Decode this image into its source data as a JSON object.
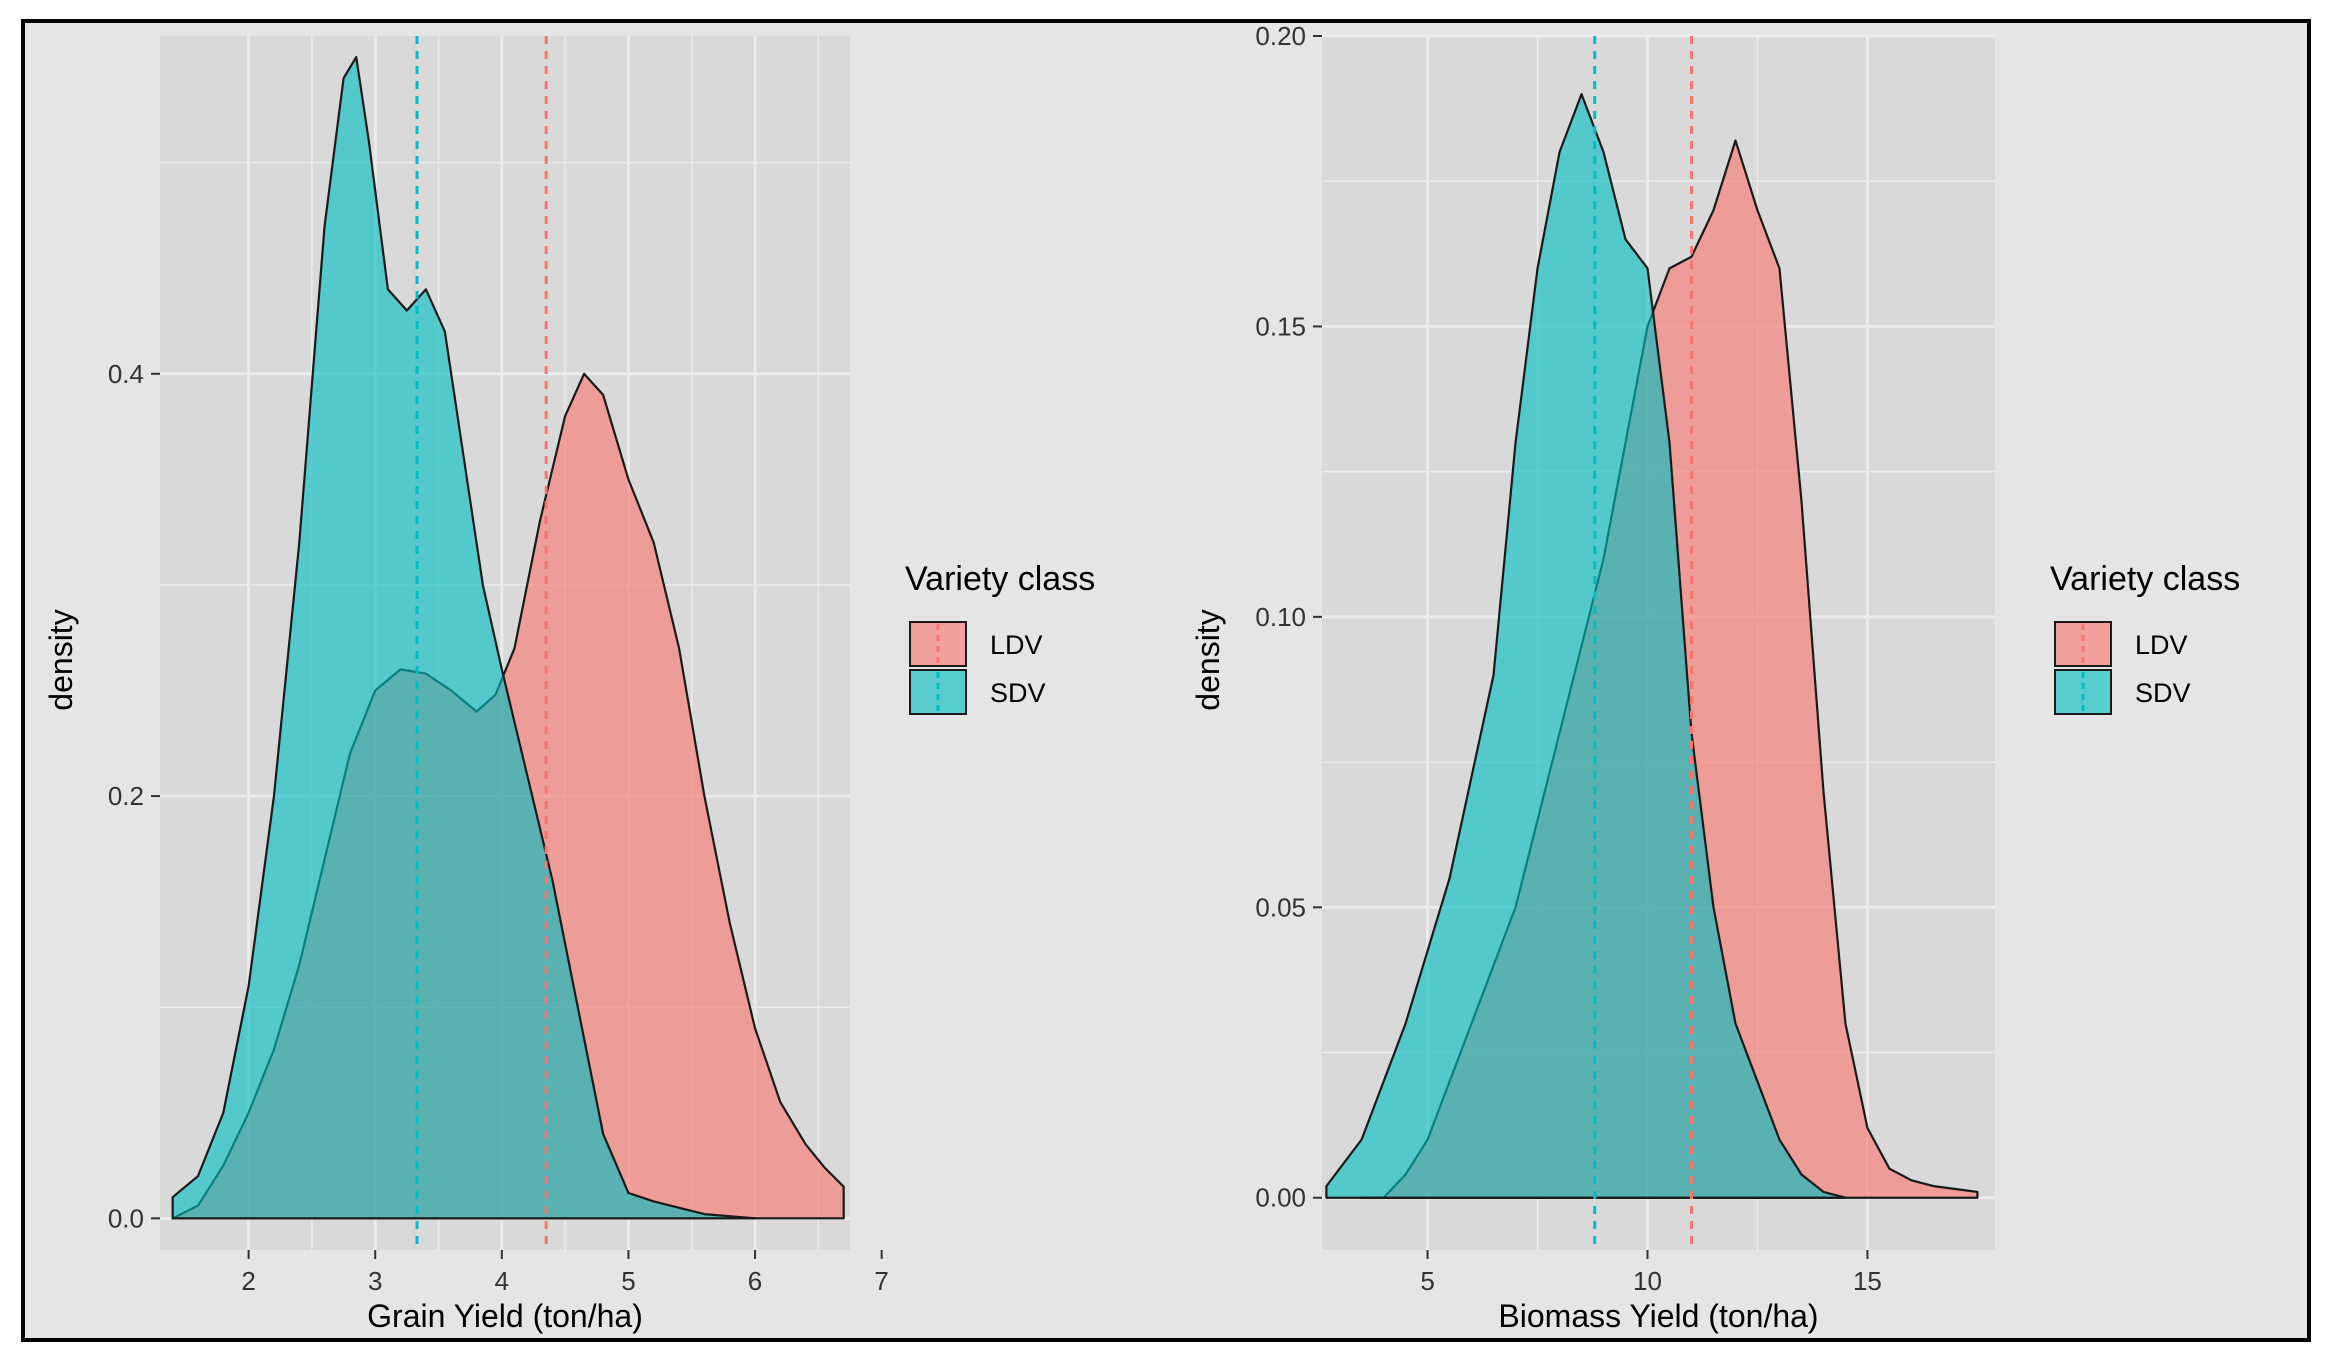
{
  "colors": {
    "ldv": "#F8766D",
    "sdv": "#00BFC4",
    "panel_bg": "#d9d9d9",
    "grid": "#ebebeb",
    "outline": "#1a1a1a"
  },
  "chart_data": [
    {
      "type": "area",
      "subtype": "density",
      "xlabel": "Grain Yield (ton/ha)",
      "ylabel": "density",
      "xlim": [
        1.3,
        6.75
      ],
      "ylim": [
        -0.015,
        0.56
      ],
      "xticks": [
        2,
        3,
        4,
        5,
        6,
        7
      ],
      "yticks": [
        0.0,
        0.2,
        0.4
      ],
      "legend": {
        "title": "Variety class",
        "position": "right"
      },
      "series": [
        {
          "name": "LDV",
          "color_key": "ldv",
          "mean": 4.35,
          "x": [
            1.4,
            1.6,
            1.8,
            2.0,
            2.2,
            2.4,
            2.6,
            2.8,
            3.0,
            3.2,
            3.4,
            3.6,
            3.8,
            3.95,
            4.1,
            4.3,
            4.5,
            4.65,
            4.8,
            5.0,
            5.2,
            5.4,
            5.6,
            5.8,
            6.0,
            6.2,
            6.4,
            6.55,
            6.7
          ],
          "y": [
            0.0,
            0.006,
            0.025,
            0.05,
            0.08,
            0.12,
            0.17,
            0.22,
            0.25,
            0.26,
            0.258,
            0.25,
            0.24,
            0.248,
            0.27,
            0.33,
            0.38,
            0.4,
            0.39,
            0.35,
            0.32,
            0.27,
            0.2,
            0.14,
            0.09,
            0.055,
            0.035,
            0.024,
            0.015
          ]
        },
        {
          "name": "SDV",
          "color_key": "sdv",
          "mean": 3.33,
          "x": [
            1.4,
            1.6,
            1.8,
            2.0,
            2.2,
            2.4,
            2.6,
            2.75,
            2.85,
            2.95,
            3.1,
            3.25,
            3.4,
            3.55,
            3.7,
            3.85,
            4.0,
            4.2,
            4.4,
            4.6,
            4.8,
            5.0,
            5.2,
            5.4,
            5.6,
            5.8,
            6.0
          ],
          "y": [
            0.01,
            0.02,
            0.05,
            0.11,
            0.2,
            0.32,
            0.47,
            0.54,
            0.55,
            0.51,
            0.44,
            0.43,
            0.44,
            0.42,
            0.36,
            0.3,
            0.26,
            0.21,
            0.16,
            0.1,
            0.04,
            0.012,
            0.008,
            0.005,
            0.002,
            0.001,
            0.0
          ]
        }
      ]
    },
    {
      "type": "area",
      "subtype": "density",
      "xlabel": "Biomass Yield (ton/ha)",
      "ylabel": "density",
      "xlim": [
        2.6,
        17.9
      ],
      "ylim": [
        -0.009,
        0.2
      ],
      "xticks": [
        5,
        10,
        15
      ],
      "yticks": [
        0.0,
        0.05,
        0.1,
        0.15,
        0.2
      ],
      "ytick_labels": [
        "0.00",
        "0.05",
        "0.10",
        "0.15",
        "0.20"
      ],
      "legend": {
        "title": "Variety class",
        "position": "right"
      },
      "series": [
        {
          "name": "LDV",
          "color_key": "ldv",
          "mean": 11.0,
          "x": [
            3.5,
            4.0,
            4.5,
            5.0,
            5.5,
            6.0,
            6.5,
            7.0,
            7.5,
            8.0,
            8.5,
            9.0,
            9.5,
            10.0,
            10.5,
            11.0,
            11.5,
            12.0,
            12.5,
            13.0,
            13.5,
            14.0,
            14.5,
            15.0,
            15.5,
            16.0,
            16.5,
            17.0,
            17.5
          ],
          "y": [
            0.0,
            0.0,
            0.004,
            0.01,
            0.02,
            0.03,
            0.04,
            0.05,
            0.065,
            0.08,
            0.095,
            0.11,
            0.13,
            0.15,
            0.16,
            0.162,
            0.17,
            0.182,
            0.17,
            0.16,
            0.12,
            0.07,
            0.03,
            0.012,
            0.005,
            0.003,
            0.002,
            0.0015,
            0.001
          ]
        },
        {
          "name": "SDV",
          "color_key": "sdv",
          "mean": 8.8,
          "x": [
            2.7,
            3.5,
            4.5,
            5.5,
            6.5,
            7.0,
            7.5,
            8.0,
            8.5,
            9.0,
            9.5,
            10.0,
            10.5,
            11.0,
            11.5,
            12.0,
            12.5,
            13.0,
            13.5,
            14.0,
            14.5
          ],
          "y": [
            0.002,
            0.01,
            0.03,
            0.055,
            0.09,
            0.13,
            0.16,
            0.18,
            0.19,
            0.18,
            0.165,
            0.16,
            0.13,
            0.08,
            0.05,
            0.03,
            0.02,
            0.01,
            0.004,
            0.001,
            0.0
          ]
        }
      ]
    }
  ]
}
